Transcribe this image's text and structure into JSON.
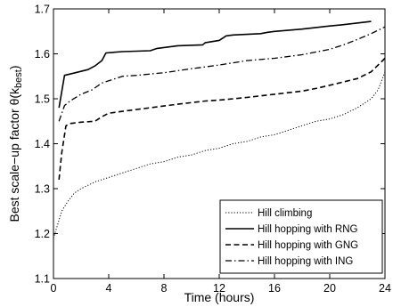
{
  "chart_data": {
    "type": "line",
    "xlabel": "Time (hours)",
    "ylabel": "Best scale−up factor  θ(k",
    "ylabel_sub": "best",
    "ylabel_close": ")",
    "xlim": [
      0,
      24
    ],
    "ylim": [
      1.1,
      1.7
    ],
    "xticks": [
      0,
      4,
      8,
      12,
      16,
      20,
      24
    ],
    "yticks": [
      1.1,
      1.2,
      1.3,
      1.4,
      1.5,
      1.6,
      1.7
    ],
    "grid": false,
    "legend_position": "bottom-right",
    "series": [
      {
        "name": "Hill climbing",
        "style": "dotted",
        "x": [
          0,
          0.3,
          0.6,
          1,
          1.5,
          2,
          3,
          4,
          5,
          6,
          7,
          8,
          9,
          10,
          11,
          12,
          13,
          14,
          15,
          16,
          17,
          18,
          19,
          20,
          21,
          22,
          23,
          23.5,
          24
        ],
        "y": [
          1.19,
          1.22,
          1.25,
          1.27,
          1.29,
          1.3,
          1.315,
          1.325,
          1.335,
          1.345,
          1.355,
          1.36,
          1.37,
          1.375,
          1.385,
          1.39,
          1.4,
          1.405,
          1.415,
          1.42,
          1.43,
          1.44,
          1.45,
          1.455,
          1.465,
          1.48,
          1.5,
          1.52,
          1.56
        ]
      },
      {
        "name": "Hill hopping with RNG",
        "style": "solid",
        "x": [
          0.4,
          0.8,
          1.2,
          1.6,
          2.5,
          3,
          3.5,
          3.8,
          5,
          7,
          7.5,
          9,
          10.8,
          11,
          12,
          12.5,
          13,
          15,
          15.5,
          16,
          18,
          20,
          21,
          23
        ],
        "y": [
          1.48,
          1.552,
          1.555,
          1.558,
          1.565,
          1.573,
          1.585,
          1.602,
          1.605,
          1.607,
          1.612,
          1.618,
          1.62,
          1.625,
          1.63,
          1.64,
          1.642,
          1.645,
          1.648,
          1.65,
          1.655,
          1.662,
          1.665,
          1.672
        ]
      },
      {
        "name": "Hill hopping with GNG",
        "style": "dashed",
        "x": [
          0.4,
          0.6,
          0.9,
          1.2,
          2,
          3,
          3.5,
          4,
          5,
          7,
          9,
          11,
          12,
          14,
          16,
          18,
          19,
          20,
          22,
          23,
          24
        ],
        "y": [
          1.32,
          1.38,
          1.44,
          1.445,
          1.448,
          1.45,
          1.46,
          1.468,
          1.472,
          1.48,
          1.488,
          1.495,
          1.497,
          1.503,
          1.51,
          1.517,
          1.523,
          1.53,
          1.545,
          1.56,
          1.59
        ]
      },
      {
        "name": "Hill hopping with ING",
        "style": "dashdot",
        "x": [
          0.4,
          0.8,
          1.2,
          2,
          2.8,
          3.5,
          4,
          5,
          6,
          8,
          10,
          12,
          14,
          16,
          18,
          20,
          21,
          22,
          23,
          24
        ],
        "y": [
          1.45,
          1.485,
          1.495,
          1.51,
          1.52,
          1.535,
          1.54,
          1.55,
          1.552,
          1.558,
          1.567,
          1.575,
          1.585,
          1.59,
          1.598,
          1.61,
          1.62,
          1.632,
          1.645,
          1.66
        ]
      }
    ]
  }
}
